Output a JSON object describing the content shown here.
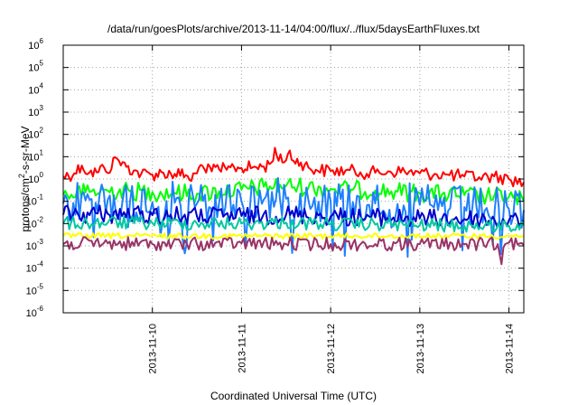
{
  "chart_data": {
    "type": "line",
    "title": "/data/run/goesPlots/archive/2013-11-14/04:00/flux/../flux/5daysEarthFluxes.txt",
    "xlabel": "Coordinated Universal Time (UTC)",
    "ylabel": "protons/cm²-s-sr-MeV",
    "yscale": "log",
    "ylim": [
      1e-06,
      1000000.0
    ],
    "xlim": [
      "2013-11-09 00:00",
      "2013-11-14 04:00"
    ],
    "x_ticks": [
      "2013-11-10",
      "2013-11-11",
      "2013-11-12",
      "2013-11-13",
      "2013-11-14"
    ],
    "y_ticks": [
      {
        "base": "10",
        "exp": "-6"
      },
      {
        "base": "10",
        "exp": "-5"
      },
      {
        "base": "10",
        "exp": "-4"
      },
      {
        "base": "10",
        "exp": "-3"
      },
      {
        "base": "10",
        "exp": "-2"
      },
      {
        "base": "10",
        "exp": "-1"
      },
      {
        "base": "10",
        "exp": "0"
      },
      {
        "base": "10",
        "exp": "1"
      },
      {
        "base": "10",
        "exp": "2"
      },
      {
        "base": "10",
        "exp": "3"
      },
      {
        "base": "10",
        "exp": "4"
      },
      {
        "base": "10",
        "exp": "5"
      },
      {
        "base": "10",
        "exp": "6"
      }
    ],
    "grid": true,
    "legend": "none",
    "series": [
      {
        "color": "#ff0000",
        "points": [
          [
            "2013-11-09 00:00",
            1.3
          ],
          [
            "2013-11-09 03:00",
            1.8
          ],
          [
            "2013-11-09 05:00",
            4.0
          ],
          [
            "2013-11-09 07:00",
            1.9
          ],
          [
            "2013-11-09 09:00",
            2.0
          ],
          [
            "2013-11-09 11:00",
            3.3
          ],
          [
            "2013-11-09 13:00",
            2.9
          ],
          [
            "2013-11-09 14:00",
            9.5
          ],
          [
            "2013-11-09 15:00",
            6.5
          ],
          [
            "2013-11-09 17:00",
            3.5
          ],
          [
            "2013-11-09 19:00",
            2.4
          ],
          [
            "2013-11-09 21:00",
            1.7
          ],
          [
            "2013-11-10 00:00",
            1.6
          ],
          [
            "2013-11-10 03:00",
            1.9
          ],
          [
            "2013-11-10 06:00",
            1.7
          ],
          [
            "2013-11-10 09:00",
            1.5
          ],
          [
            "2013-11-10 10:00",
            0.9
          ],
          [
            "2013-11-10 12:00",
            1.8
          ],
          [
            "2013-11-10 13:00",
            4.3
          ],
          [
            "2013-11-10 14:00",
            2.8
          ],
          [
            "2013-11-10 15:00",
            4.6
          ],
          [
            "2013-11-10 16:00",
            2.2
          ],
          [
            "2013-11-10 18:00",
            2.7
          ],
          [
            "2013-11-10 20:00",
            2.6
          ],
          [
            "2013-11-10 22:00",
            3.4
          ],
          [
            "2013-11-11 00:00",
            3.1
          ],
          [
            "2013-11-11 03:00",
            3.3
          ],
          [
            "2013-11-11 06:00",
            3.6
          ],
          [
            "2013-11-11 08:00",
            5.3
          ],
          [
            "2013-11-11 09:00",
            25.0
          ],
          [
            "2013-11-11 10:00",
            6.5
          ],
          [
            "2013-11-11 12:00",
            7.0
          ],
          [
            "2013-11-11 13:00",
            19.0
          ],
          [
            "2013-11-11 14:00",
            6.5
          ],
          [
            "2013-11-11 16:00",
            5.5
          ],
          [
            "2013-11-11 18:00",
            3.3
          ],
          [
            "2013-11-11 20:00",
            2.6
          ],
          [
            "2013-11-12 00:00",
            2.3
          ],
          [
            "2013-11-12 04:00",
            2.4
          ],
          [
            "2013-11-12 08:00",
            2.0
          ],
          [
            "2013-11-12 12:00",
            1.9
          ],
          [
            "2013-11-12 16:00",
            2.2
          ],
          [
            "2013-11-12 20:00",
            2.1
          ],
          [
            "2013-11-13 00:00",
            1.8
          ],
          [
            "2013-11-13 04:00",
            1.7
          ],
          [
            "2013-11-13 08:00",
            1.5
          ],
          [
            "2013-11-13 12:00",
            1.3
          ],
          [
            "2013-11-13 16:00",
            1.2
          ],
          [
            "2013-11-13 20:00",
            1.3
          ],
          [
            "2013-11-14 00:00",
            1.0
          ],
          [
            "2013-11-14 04:00",
            0.7
          ]
        ]
      },
      {
        "color": "#00ff00",
        "points": [
          [
            "2013-11-09 00:00",
            0.19
          ],
          [
            "2013-11-09 06:00",
            0.25
          ],
          [
            "2013-11-09 12:00",
            0.3
          ],
          [
            "2013-11-09 18:00",
            0.28
          ],
          [
            "2013-11-10 00:00",
            0.26
          ],
          [
            "2013-11-10 06:00",
            0.24
          ],
          [
            "2013-11-10 12:00",
            0.22
          ],
          [
            "2013-11-10 18:00",
            0.28
          ],
          [
            "2013-11-11 00:00",
            0.33
          ],
          [
            "2013-11-11 06:00",
            0.45
          ],
          [
            "2013-11-11 12:00",
            0.5
          ],
          [
            "2013-11-11 18:00",
            0.42
          ],
          [
            "2013-11-12 00:00",
            0.36
          ],
          [
            "2013-11-12 06:00",
            0.33
          ],
          [
            "2013-11-12 12:00",
            0.3
          ],
          [
            "2013-11-12 18:00",
            0.27
          ],
          [
            "2013-11-13 00:00",
            0.23
          ],
          [
            "2013-11-13 06:00",
            0.21
          ],
          [
            "2013-11-13 12:00",
            0.19
          ],
          [
            "2013-11-13 18:00",
            0.17
          ],
          [
            "2013-11-14 00:00",
            0.16
          ],
          [
            "2013-11-14 04:00",
            0.1
          ]
        ]
      },
      {
        "color": "#1f7fff",
        "points": [
          [
            "2013-11-09 00:00",
            0.08
          ],
          [
            "2013-11-09 06:00",
            0.11
          ],
          [
            "2013-11-09 12:00",
            0.12
          ],
          [
            "2013-11-09 18:00",
            0.1
          ],
          [
            "2013-11-10 00:00",
            0.09
          ],
          [
            "2013-11-10 06:00",
            0.085
          ],
          [
            "2013-11-10 12:00",
            0.08
          ],
          [
            "2013-11-10 18:00",
            0.09
          ],
          [
            "2013-11-11 00:00",
            0.1
          ],
          [
            "2013-11-11 06:00",
            0.12
          ],
          [
            "2013-11-11 12:00",
            0.13
          ],
          [
            "2013-11-11 18:00",
            0.11
          ],
          [
            "2013-11-12 00:00",
            0.1
          ],
          [
            "2013-11-12 06:00",
            0.09
          ],
          [
            "2013-11-12 12:00",
            0.08
          ],
          [
            "2013-11-12 18:00",
            0.075
          ],
          [
            "2013-11-13 00:00",
            0.07
          ],
          [
            "2013-11-13 06:00",
            0.06
          ],
          [
            "2013-11-13 12:00",
            0.055
          ],
          [
            "2013-11-13 18:00",
            0.05
          ],
          [
            "2013-11-14 00:00",
            0.045
          ],
          [
            "2013-11-14 04:00",
            0.04
          ]
        ]
      },
      {
        "color": "#0000cc",
        "points": [
          [
            "2013-11-09 00:00",
            0.025
          ],
          [
            "2013-11-09 12:00",
            0.027
          ],
          [
            "2013-11-10 00:00",
            0.024
          ],
          [
            "2013-11-10 12:00",
            0.021
          ],
          [
            "2013-11-11 00:00",
            0.022
          ],
          [
            "2013-11-11 12:00",
            0.025
          ],
          [
            "2013-11-12 00:00",
            0.021
          ],
          [
            "2013-11-12 12:00",
            0.019
          ],
          [
            "2013-11-13 00:00",
            0.017
          ],
          [
            "2013-11-13 12:00",
            0.016
          ],
          [
            "2013-11-14 00:00",
            0.014
          ],
          [
            "2013-11-14 04:00",
            0.013
          ]
        ]
      },
      {
        "color": "#00c8a0",
        "points": [
          [
            "2013-11-09 00:00",
            0.01
          ],
          [
            "2013-11-09 12:00",
            0.011
          ],
          [
            "2013-11-10 00:00",
            0.0105
          ],
          [
            "2013-11-10 12:00",
            0.01
          ],
          [
            "2013-11-11 00:00",
            0.01
          ],
          [
            "2013-11-11 12:00",
            0.011
          ],
          [
            "2013-11-12 00:00",
            0.0095
          ],
          [
            "2013-11-12 12:00",
            0.009
          ],
          [
            "2013-11-13 00:00",
            0.0085
          ],
          [
            "2013-11-13 12:00",
            0.008
          ],
          [
            "2013-11-14 00:00",
            0.008
          ],
          [
            "2013-11-14 04:00",
            0.008
          ]
        ]
      },
      {
        "color": "#ffff00",
        "points": [
          [
            "2013-11-09 00:00",
            0.0028
          ],
          [
            "2013-11-10 00:00",
            0.0028
          ],
          [
            "2013-11-11 00:00",
            0.0028
          ],
          [
            "2013-11-12 00:00",
            0.0028
          ],
          [
            "2013-11-13 00:00",
            0.0028
          ],
          [
            "2013-11-14 04:00",
            0.0028
          ]
        ]
      },
      {
        "color": "#993366",
        "points": [
          [
            "2013-11-09 00:00",
            0.0012
          ],
          [
            "2013-11-09 12:00",
            0.0013
          ],
          [
            "2013-11-10 00:00",
            0.0012
          ],
          [
            "2013-11-10 12:00",
            0.0012
          ],
          [
            "2013-11-11 00:00",
            0.0013
          ],
          [
            "2013-11-11 12:00",
            0.0012
          ],
          [
            "2013-11-12 00:00",
            0.0012
          ],
          [
            "2013-11-12 12:00",
            0.0012
          ],
          [
            "2013-11-13 00:00",
            0.0012
          ],
          [
            "2013-11-13 12:00",
            0.0012
          ],
          [
            "2013-11-13 21:00",
            0.0012
          ],
          [
            "2013-11-13 22:00",
            0.00015
          ],
          [
            "2013-11-13 23:00",
            0.0012
          ],
          [
            "2013-11-14 04:00",
            0.0011
          ]
        ]
      }
    ]
  }
}
